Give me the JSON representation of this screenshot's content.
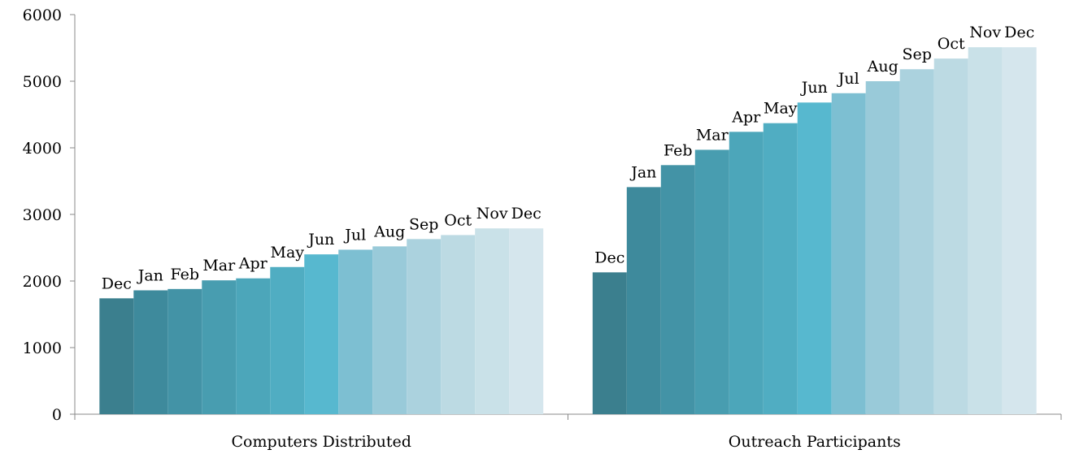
{
  "chart_data": {
    "type": "bar",
    "categories": [
      "Computers Distributed",
      "Outreach Participants"
    ],
    "series": [
      {
        "name": "Dec",
        "color": "#3b7f8e",
        "values": [
          1740,
          2130
        ]
      },
      {
        "name": "Jan",
        "color": "#3e8a9c",
        "values": [
          1860,
          3410
        ]
      },
      {
        "name": "Feb",
        "color": "#4393a6",
        "values": [
          1880,
          3740
        ]
      },
      {
        "name": "Mar",
        "color": "#489db0",
        "values": [
          2010,
          3970
        ]
      },
      {
        "name": "Apr",
        "color": "#4ca6ba",
        "values": [
          2040,
          4240
        ]
      },
      {
        "name": "May",
        "color": "#50adc2",
        "values": [
          2210,
          4370
        ]
      },
      {
        "name": "Jun",
        "color": "#57b8cf",
        "values": [
          2400,
          4680
        ]
      },
      {
        "name": "Jul",
        "color": "#7dbfd2",
        "values": [
          2470,
          4820
        ]
      },
      {
        "name": "Aug",
        "color": "#99cad9",
        "values": [
          2520,
          5000
        ]
      },
      {
        "name": "Sep",
        "color": "#abd2de",
        "values": [
          2630,
          5180
        ]
      },
      {
        "name": "Oct",
        "color": "#bcdae3",
        "values": [
          2690,
          5340
        ]
      },
      {
        "name": "Nov",
        "color": "#c9e1e8",
        "values": [
          2790,
          5510
        ]
      },
      {
        "name": "Dec",
        "color": "#d5e6ed",
        "values": [
          2790,
          5510
        ]
      }
    ],
    "ylim": [
      0,
      6000
    ],
    "yticks": [
      0,
      1000,
      2000,
      3000,
      4000,
      5000,
      6000
    ],
    "grid": false
  }
}
